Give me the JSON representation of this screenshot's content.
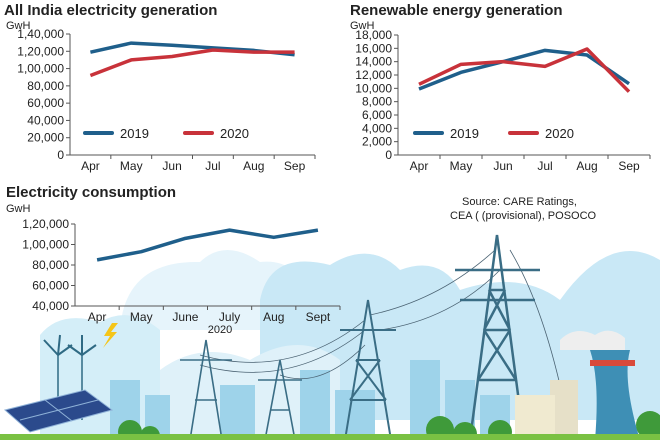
{
  "colors": {
    "y2019": "#1f5f8b",
    "y2020": "#c8323a",
    "axis": "#555555",
    "sky": "#cfe9f5",
    "cloud": "#e4f3fa"
  },
  "source": {
    "line1": "Source: CARE Ratings,",
    "line2": "CEA ( (provisional), POSOCO"
  },
  "chart_data": [
    {
      "type": "line",
      "title": "All India electricity generation",
      "ylabel": "GwH",
      "categories": [
        "Apr",
        "May",
        "Jun",
        "Jul",
        "Aug",
        "Sep"
      ],
      "ylim": [
        0,
        140000
      ],
      "yticks": [
        "0",
        "20,000",
        "40,000",
        "60,000",
        "80,000",
        "1,00,000",
        "1,20,000",
        "1,40,000"
      ],
      "legend": "bottom-left",
      "series": [
        {
          "name": "2019",
          "values": [
            119000,
            129500,
            127000,
            124000,
            121000,
            116000
          ]
        },
        {
          "name": "2020",
          "values": [
            92000,
            110000,
            114000,
            121500,
            119000,
            119000
          ]
        }
      ]
    },
    {
      "type": "line",
      "title": "Renewable energy generation",
      "ylabel": "GwH",
      "categories": [
        "Apr",
        "May",
        "Jun",
        "Jul",
        "Aug",
        "Sep"
      ],
      "ylim": [
        0,
        18000
      ],
      "yticks": [
        "0",
        "2,000",
        "4,000",
        "6,000",
        "8,000",
        "10,000",
        "12,000",
        "14,000",
        "16,000",
        "18,000"
      ],
      "legend": "bottom-left",
      "series": [
        {
          "name": "2019",
          "values": [
            9900,
            12400,
            14000,
            15700,
            15000,
            10700
          ]
        },
        {
          "name": "2020",
          "values": [
            10600,
            13600,
            14000,
            13300,
            15900,
            9500
          ]
        }
      ]
    },
    {
      "type": "line",
      "title": "Electricity consumption",
      "ylabel": "GwH",
      "xlabel": "2020",
      "categories": [
        "Apr",
        "May",
        "June",
        "July",
        "Aug",
        "Sept"
      ],
      "ylim": [
        40000,
        120000
      ],
      "yticks": [
        "40,000",
        "60,000",
        "80,000",
        "1,00,000",
        "1,20,000"
      ],
      "series": [
        {
          "name": "2020",
          "values": [
            85000,
            93000,
            106000,
            114000,
            107000,
            114000
          ]
        }
      ]
    }
  ]
}
